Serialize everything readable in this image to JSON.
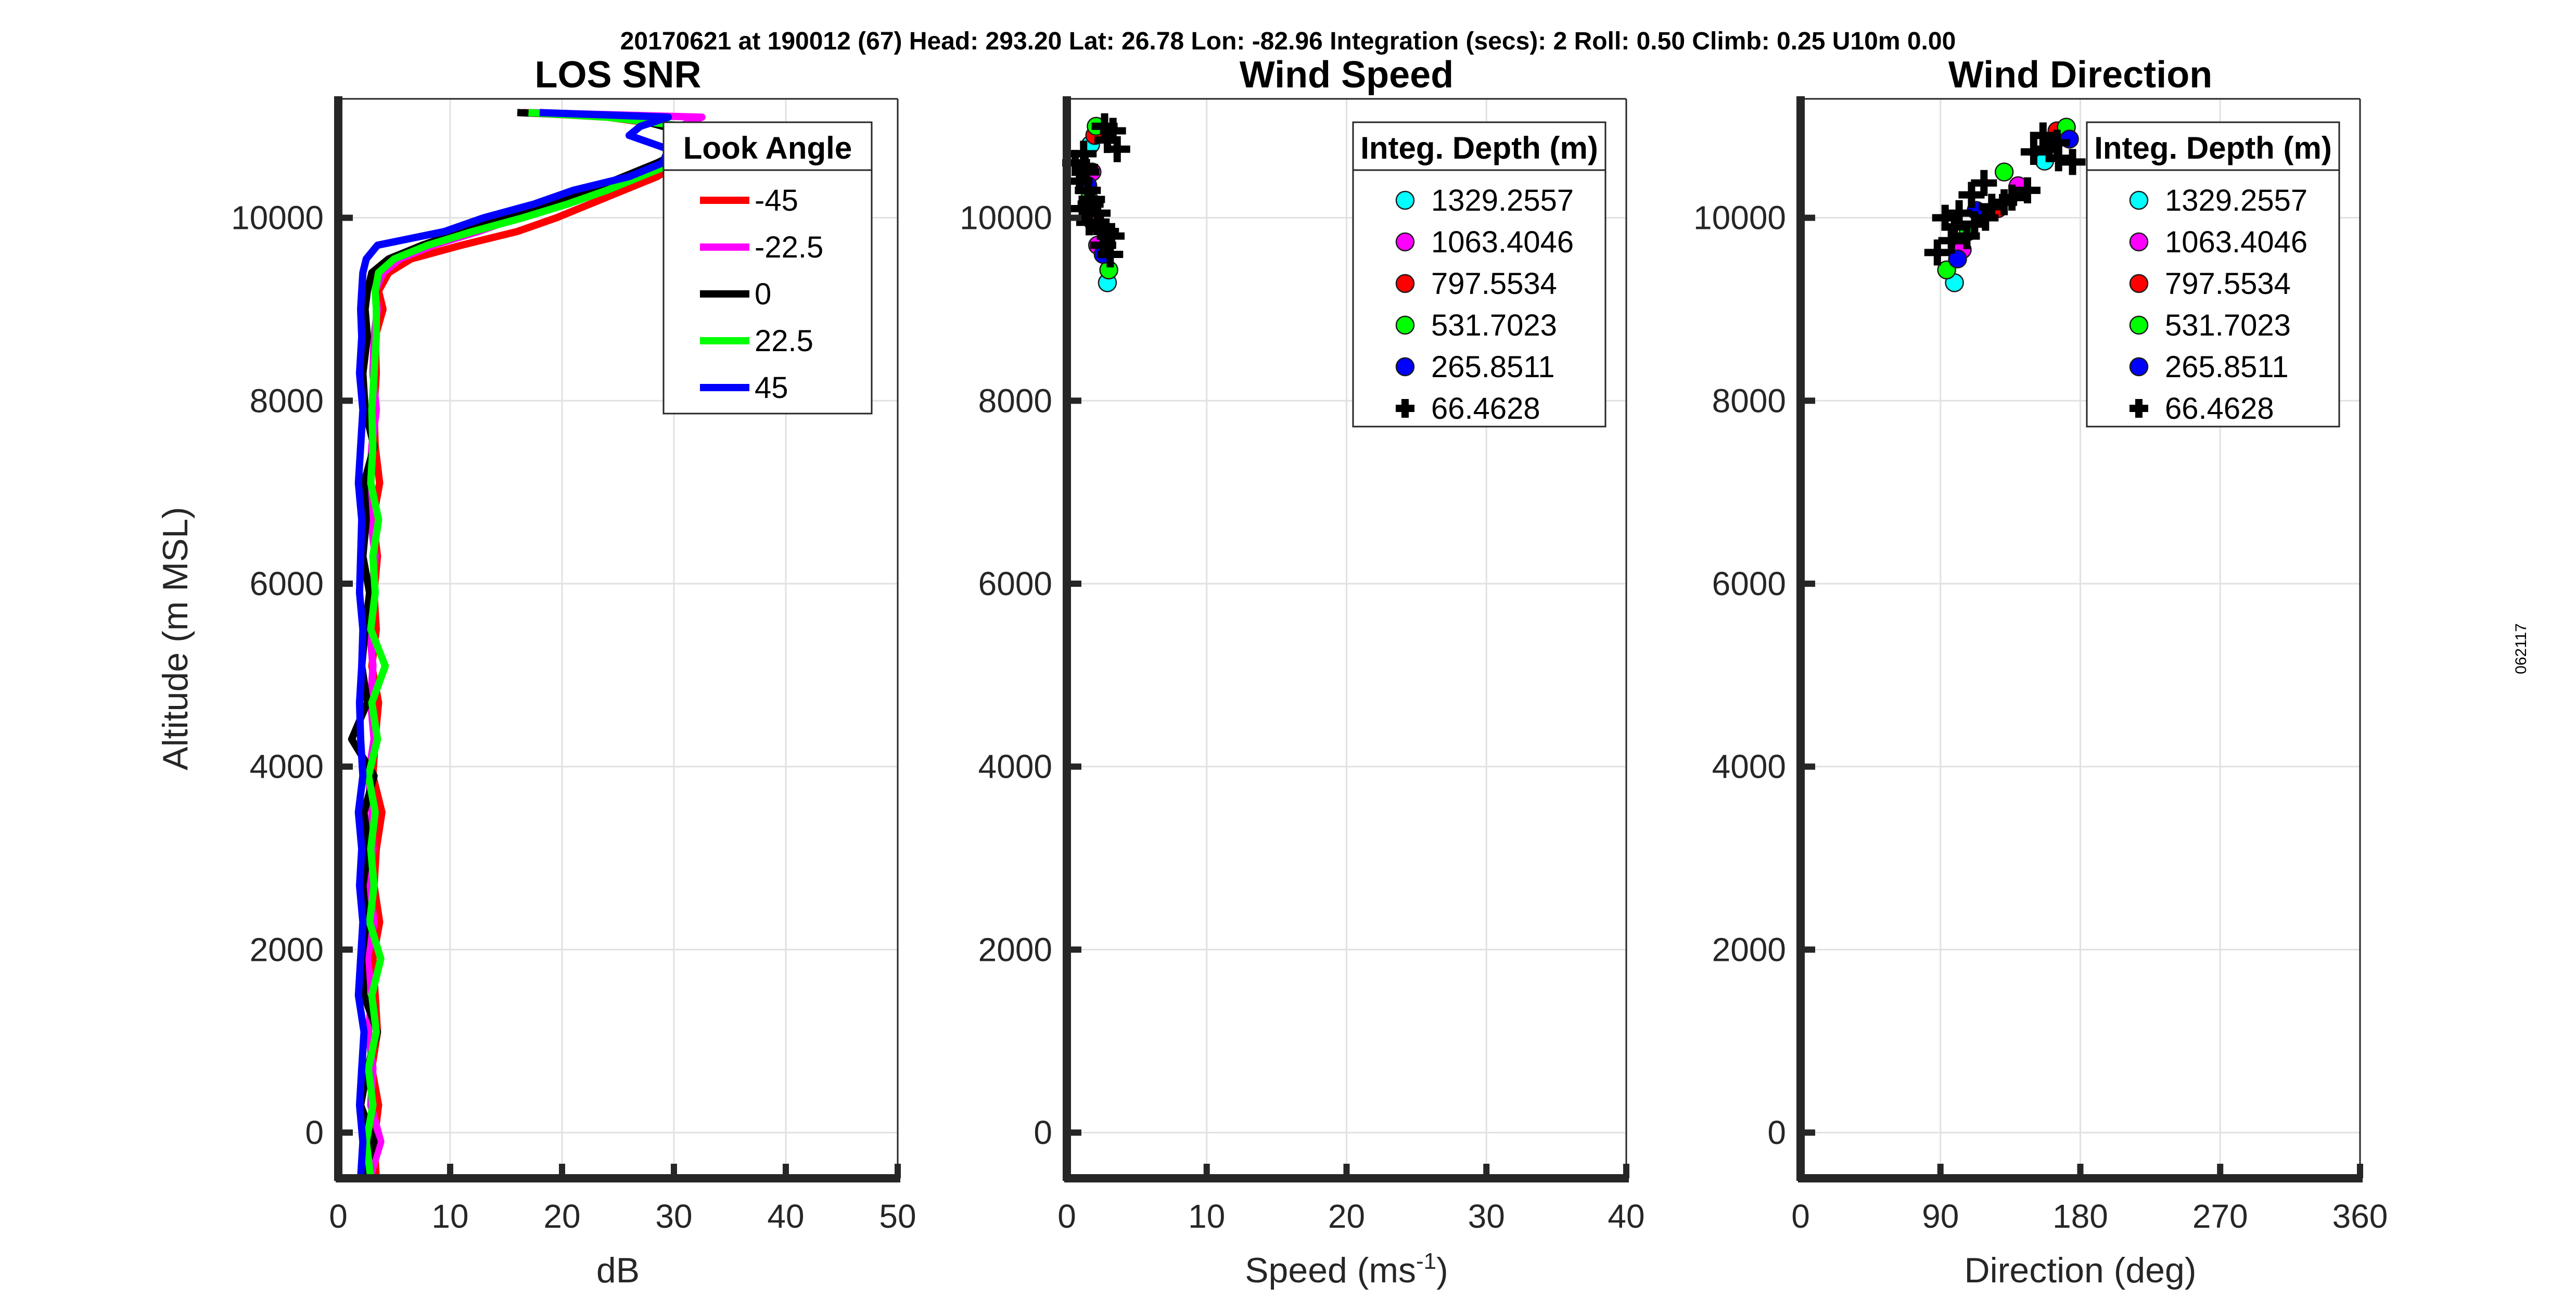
{
  "header": {
    "text": "20170621 at 190012 (67)  Head: 293.20  Lat: 26.78  Lon: -82.96  Integration (secs): 2  Roll: 0.50  Climb: 0.25  U10m 0.00"
  },
  "side_note": "062117",
  "chart_data": [
    {
      "type": "line",
      "title": "LOS SNR",
      "xlabel": "dB",
      "ylabel": "Altitude (m MSL)",
      "xlim": [
        0,
        50
      ],
      "ylim": [
        -500,
        11300
      ],
      "xticks": [
        0,
        10,
        20,
        30,
        40,
        50
      ],
      "yticks": [
        0,
        2000,
        4000,
        6000,
        8000,
        10000
      ],
      "grid": true,
      "legend": {
        "title": "Look Angle",
        "position": "top-right"
      },
      "y": [
        -500,
        -100,
        300,
        700,
        1100,
        1500,
        1900,
        2300,
        2700,
        3100,
        3500,
        3900,
        4300,
        4700,
        5100,
        5500,
        5900,
        6300,
        6700,
        7100,
        7500,
        7900,
        8300,
        8700,
        9000,
        9200,
        9400,
        9550,
        9700,
        9850,
        10000,
        10150,
        10300,
        10450,
        10600,
        10750,
        10900,
        11000,
        11100,
        11150
      ],
      "series": [
        {
          "name": "-45",
          "color": "#ff0000",
          "values": [
            3.4,
            3.2,
            3.6,
            3.0,
            3.5,
            3.3,
            3.1,
            3.7,
            3.2,
            3.4,
            3.9,
            3.1,
            3.3,
            3.6,
            3.0,
            3.4,
            3.2,
            3.5,
            3.1,
            3.7,
            3.3,
            3.2,
            3.4,
            3.3,
            4.0,
            3.6,
            4.5,
            6.5,
            11.0,
            16.0,
            19.5,
            22.5,
            25.5,
            28.5,
            30.5,
            33.0,
            35.0,
            30.0,
            24.0,
            16.5
          ]
        },
        {
          "name": "-22.5",
          "color": "#ff00ff",
          "values": [
            2.8,
            3.8,
            2.9,
            3.1,
            2.7,
            3.0,
            2.6,
            3.2,
            2.8,
            3.1,
            3.0,
            2.7,
            3.2,
            2.9,
            3.1,
            2.8,
            3.0,
            3.3,
            2.9,
            2.8,
            3.0,
            3.4,
            3.1,
            3.2,
            3.5,
            3.3,
            4.0,
            5.5,
            8.5,
            12.5,
            16.0,
            20.0,
            23.5,
            26.5,
            29.5,
            31.5,
            34.0,
            30.5,
            32.5,
            17.0
          ]
        },
        {
          "name": "0",
          "color": "#000000",
          "values": [
            2.2,
            3.2,
            2.0,
            2.6,
            3.5,
            2.3,
            2.1,
            2.5,
            2.2,
            2.7,
            2.3,
            3.2,
            1.2,
            2.6,
            2.1,
            2.4,
            2.8,
            2.2,
            2.5,
            2.3,
            3.2,
            2.4,
            2.2,
            2.6,
            2.4,
            2.6,
            3.0,
            4.5,
            7.5,
            11.0,
            15.0,
            19.0,
            22.5,
            25.5,
            28.5,
            31.0,
            32.5,
            29.0,
            26.0,
            16.0
          ]
        },
        {
          "name": "22.5",
          "color": "#00ff00",
          "values": [
            2.9,
            2.5,
            3.1,
            2.7,
            3.4,
            3.0,
            3.8,
            2.8,
            3.2,
            2.9,
            3.3,
            2.7,
            3.5,
            3.0,
            4.2,
            2.9,
            3.3,
            3.1,
            3.6,
            2.9,
            3.1,
            3.0,
            3.2,
            3.4,
            3.4,
            3.3,
            3.6,
            5.0,
            8.0,
            12.0,
            16.5,
            20.5,
            24.0,
            27.0,
            30.0,
            33.0,
            35.0,
            31.0,
            24.0,
            17.0
          ]
        },
        {
          "name": "45",
          "color": "#0000ff",
          "values": [
            2.0,
            2.2,
            1.9,
            2.1,
            2.3,
            1.8,
            2.0,
            2.2,
            1.9,
            2.1,
            1.8,
            2.2,
            2.0,
            1.9,
            2.1,
            2.2,
            1.9,
            2.0,
            2.1,
            1.8,
            2.0,
            2.2,
            1.9,
            2.1,
            2.0,
            2.1,
            2.2,
            2.5,
            3.5,
            9.5,
            13.0,
            17.5,
            21.0,
            26.0,
            29.0,
            29.5,
            26.0,
            27.0,
            29.5,
            18.0
          ]
        }
      ]
    },
    {
      "type": "scatter",
      "title": "Wind Speed",
      "xlabel": "Speed (ms",
      "xlabel_sup": "-1",
      "xlabel_tail": ")",
      "xlim": [
        0,
        40
      ],
      "ylim": [
        -500,
        11300
      ],
      "xticks": [
        0,
        10,
        20,
        30,
        40
      ],
      "yticks": [
        0,
        2000,
        4000,
        6000,
        8000,
        10000
      ],
      "grid": true,
      "legend": {
        "title": "Integ. Depth (m)",
        "position": "top-right"
      },
      "series": [
        {
          "name": "1329.2557",
          "color": "#00ffff",
          "marker": "circle",
          "points": [
            [
              2.9,
              9290
            ],
            [
              1.7,
              10800
            ]
          ]
        },
        {
          "name": "1063.4046",
          "color": "#ff00ff",
          "marker": "circle",
          "points": [
            [
              2.2,
              9700
            ],
            [
              1.8,
              10500
            ]
          ]
        },
        {
          "name": "797.5534",
          "color": "#ff0000",
          "marker": "circle",
          "points": [
            [
              2.0,
              10900
            ],
            [
              1.9,
              9950
            ]
          ]
        },
        {
          "name": "531.7023",
          "color": "#00ff00",
          "marker": "circle",
          "points": [
            [
              3.0,
              9430
            ],
            [
              2.1,
              11000
            ],
            [
              1.6,
              10200
            ]
          ]
        },
        {
          "name": "265.8511",
          "color": "#0000ff",
          "marker": "circle",
          "points": [
            [
              2.6,
              9600
            ],
            [
              1.5,
              10350
            ]
          ]
        },
        {
          "name": "66.4628",
          "color": "#000000",
          "marker": "plus",
          "points": [
            [
              3.1,
              9600
            ],
            [
              2.6,
              9700
            ],
            [
              3.2,
              9800
            ],
            [
              2.4,
              9900
            ],
            [
              1.6,
              9950
            ],
            [
              2.2,
              10050
            ],
            [
              1.1,
              10100
            ],
            [
              1.8,
              10200
            ],
            [
              1.5,
              10300
            ],
            [
              0.9,
              10400
            ],
            [
              1.4,
              10500
            ],
            [
              0.6,
              10600
            ],
            [
              1.2,
              10700
            ],
            [
              3.6,
              10750
            ],
            [
              2.9,
              10850
            ],
            [
              3.3,
              10950
            ],
            [
              2.7,
              11000
            ],
            [
              1.7,
              10150
            ],
            [
              2.8,
              9850
            ],
            [
              1.3,
              10550
            ]
          ]
        }
      ]
    },
    {
      "type": "scatter",
      "title": "Wind Direction",
      "xlabel": "Direction (deg)",
      "xlim": [
        0,
        360
      ],
      "ylim": [
        -500,
        11300
      ],
      "xticks": [
        0,
        90,
        180,
        270,
        360
      ],
      "yticks": [
        0,
        2000,
        4000,
        6000,
        8000,
        10000
      ],
      "grid": true,
      "legend": {
        "title": "Integ. Depth (m)",
        "position": "top-right"
      },
      "series": [
        {
          "name": "1329.2557",
          "color": "#00ffff",
          "marker": "circle",
          "points": [
            [
              99,
              9290
            ],
            [
              157,
              10620
            ]
          ]
        },
        {
          "name": "1063.4046",
          "color": "#ff00ff",
          "marker": "circle",
          "points": [
            [
              104,
              9650
            ],
            [
              140,
              10350
            ]
          ]
        },
        {
          "name": "797.5534",
          "color": "#ff0000",
          "marker": "circle",
          "points": [
            [
              127,
              10100
            ],
            [
              165,
              10950
            ]
          ]
        },
        {
          "name": "531.7023",
          "color": "#00ff00",
          "marker": "circle",
          "points": [
            [
              94,
              9430
            ],
            [
              108,
              9850
            ],
            [
              131,
              10500
            ],
            [
              171,
              10990
            ]
          ]
        },
        {
          "name": "265.8511",
          "color": "#0000ff",
          "marker": "circle",
          "points": [
            [
              101,
              9550
            ],
            [
              113,
              10080
            ],
            [
              173,
              10860
            ]
          ]
        },
        {
          "name": "66.4628",
          "color": "#000000",
          "marker": "plus",
          "points": [
            [
              88,
              9620
            ],
            [
              97,
              9750
            ],
            [
              107,
              9800
            ],
            [
              93,
              10000
            ],
            [
              112,
              9930
            ],
            [
              119,
              10000
            ],
            [
              123,
              10120
            ],
            [
              131,
              10170
            ],
            [
              136,
              10220
            ],
            [
              146,
              10300
            ],
            [
              102,
              10050
            ],
            [
              118,
              10380
            ],
            [
              110,
              10250
            ],
            [
              150,
              10720
            ],
            [
              160,
              10750
            ],
            [
              156,
              10900
            ],
            [
              166,
              10650
            ],
            [
              175,
              10610
            ],
            [
              165,
              10820
            ],
            [
              99,
              9900
            ]
          ]
        }
      ]
    }
  ]
}
